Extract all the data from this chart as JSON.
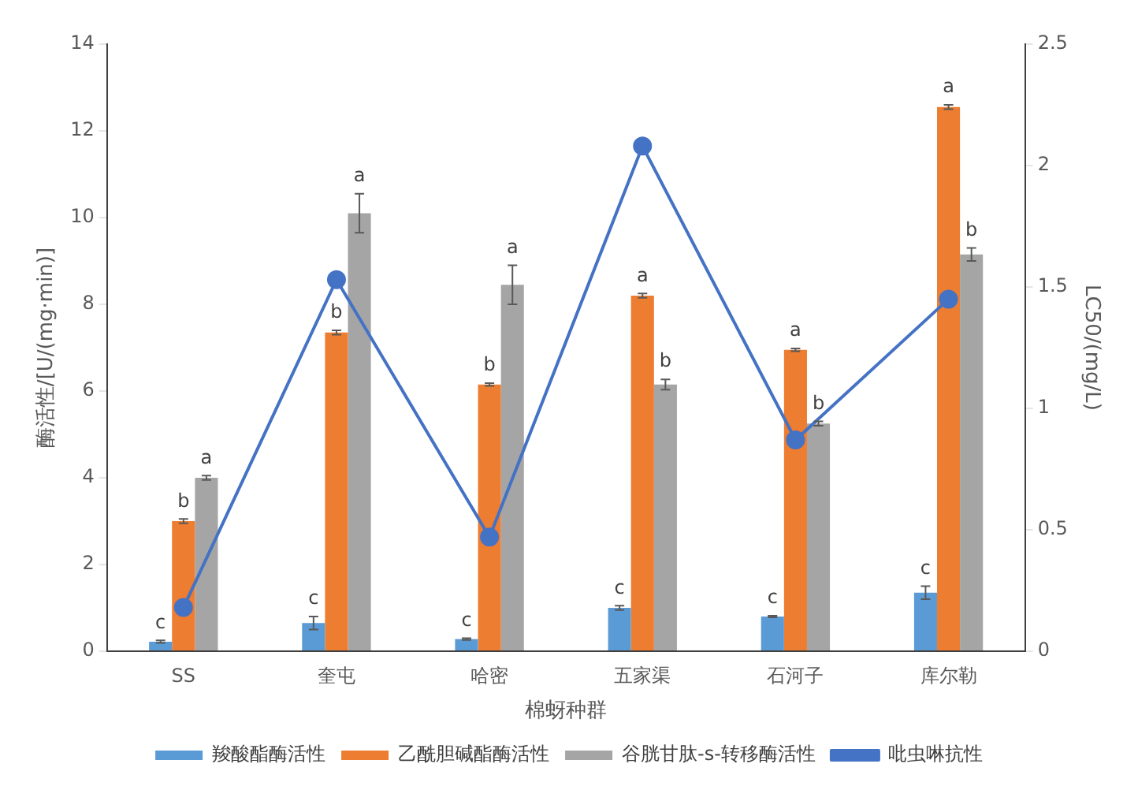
{
  "chart_data": {
    "type": "bar",
    "xlabel": "棉蚜种群",
    "ylabel": "酶活性/[U/(mg·min)]",
    "y2label": "LC50/(mg/L)",
    "categories": [
      "SS",
      "奎屯",
      "哈密",
      "五家渠",
      "石河子",
      "库尔勒"
    ],
    "series": [
      {
        "name": "羧酸酯酶活性",
        "color": "#5b9bd5",
        "values": [
          0.22,
          0.65,
          0.28,
          1.0,
          0.8,
          1.35
        ],
        "errors": [
          0.03,
          0.15,
          0.02,
          0.05,
          0.02,
          0.15
        ]
      },
      {
        "name": "乙酰胆碱酯酶活性",
        "color": "#ed7d31",
        "values": [
          3.0,
          7.35,
          6.15,
          8.2,
          6.95,
          12.55
        ],
        "errors": [
          0.05,
          0.05,
          0.03,
          0.05,
          0.03,
          0.05
        ]
      },
      {
        "name": "谷胱甘肽-s-转移酶活性",
        "color": "#a5a5a5",
        "values": [
          4.0,
          10.1,
          8.45,
          6.15,
          5.25,
          9.15
        ],
        "errors": [
          0.05,
          0.45,
          0.45,
          0.12,
          0.05,
          0.15
        ]
      },
      {
        "name": "吡虫啉抗性",
        "type": "line",
        "axis": "y2",
        "color": "#4472c4",
        "marker": "circle",
        "values": [
          0.18,
          1.53,
          0.47,
          2.08,
          0.87,
          1.45
        ]
      }
    ],
    "ylim": [
      0,
      14
    ],
    "yticks": [
      0,
      2,
      4,
      6,
      8,
      10,
      12,
      14
    ],
    "y2lim": [
      0,
      2.5
    ],
    "y2ticks": [
      0,
      0.5,
      1,
      1.5,
      2,
      2.5
    ],
    "grid": false,
    "legend": "bottom",
    "annotations": [
      "c",
      "b",
      "a",
      "c",
      "b",
      "a",
      "c",
      "b",
      "a",
      "c",
      "a",
      "b",
      "c",
      "a",
      "b",
      "c",
      "a",
      "b"
    ]
  }
}
